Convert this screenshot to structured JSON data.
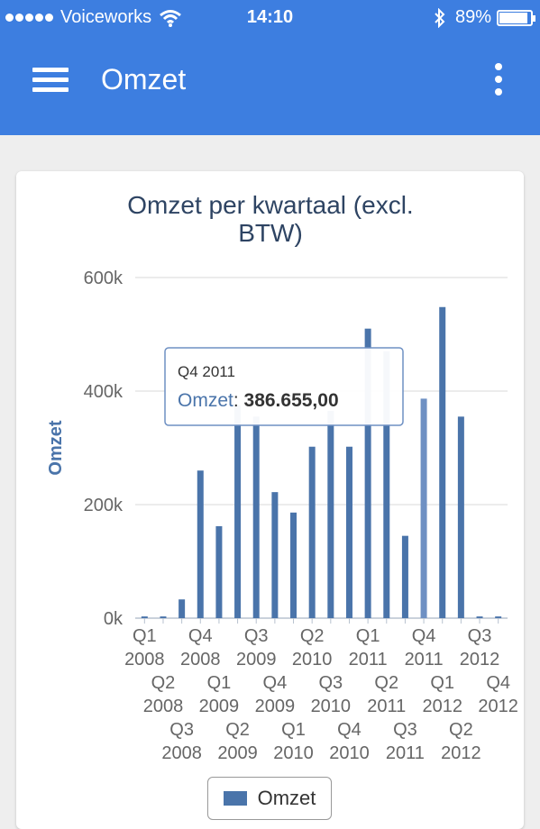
{
  "status_bar": {
    "carrier": "Voiceworks",
    "time": "14:10",
    "battery": "89%",
    "icons": [
      "signal-dots-icon",
      "wifi-icon",
      "bluetooth-icon",
      "battery-icon"
    ]
  },
  "app_bar": {
    "title": "Omzet",
    "menu_icon": "hamburger-menu-icon",
    "more_icon": "more-vertical-icon",
    "color": "#3d7ee0"
  },
  "chart_data": {
    "type": "bar",
    "title": "Omzet per kwartaal (excl. BTW)",
    "ylabel": "Omzet",
    "xlabel": "",
    "ylim": [
      0,
      600000
    ],
    "y_ticks": [
      0,
      200000,
      400000,
      600000
    ],
    "y_tick_labels": [
      "0k",
      "200k",
      "400k",
      "600k"
    ],
    "grid": true,
    "bar_color": "#4a74aa",
    "categories": [
      "Q1 2008",
      "Q2 2008",
      "Q3 2008",
      "Q4 2008",
      "Q1 2009",
      "Q2 2009",
      "Q3 2009",
      "Q4 2009",
      "Q1 2010",
      "Q2 2010",
      "Q3 2010",
      "Q4 2010",
      "Q1 2011",
      "Q2 2011",
      "Q3 2011",
      "Q4 2011",
      "Q1 2012",
      "Q2 2012",
      "Q3 2012",
      "Q4 2012"
    ],
    "series": [
      {
        "name": "Omzet",
        "values": [
          3000,
          3000,
          33000,
          260000,
          162000,
          375000,
          355000,
          222000,
          186000,
          302000,
          365000,
          302000,
          510000,
          470000,
          145000,
          386655,
          548000,
          355000,
          3000,
          3000
        ]
      }
    ],
    "tooltip": {
      "category": "Q4 2011",
      "series": "Omzet",
      "value": "386.655,00"
    },
    "legend": {
      "position": "bottom-center",
      "entries": [
        "Omzet"
      ]
    },
    "highlighted_category": "Q4 2011"
  }
}
